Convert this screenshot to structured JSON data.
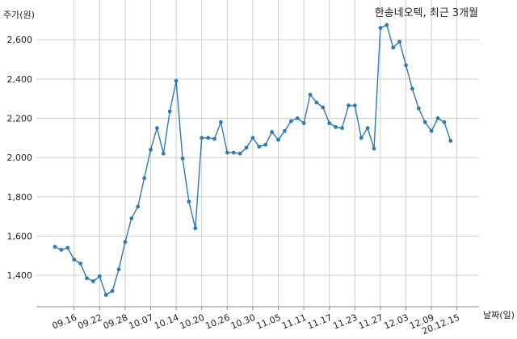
{
  "chart_data": {
    "type": "line",
    "title": "한송네오텍, 최근 3개월",
    "ylabel": "주가(원)",
    "xlabel": "날짜(일)",
    "ylim": [
      1240,
      2720
    ],
    "yticks": [
      1400,
      1600,
      1800,
      2000,
      2200,
      2400,
      2600
    ],
    "ytick_labels": [
      "1,400",
      "1,600",
      "1,800",
      "2,000",
      "2,200",
      "2,400",
      "2,600"
    ],
    "xtick_labels": [
      "09.16",
      "09.22",
      "09.28",
      "10.07",
      "10.14",
      "10.20",
      "10.26",
      "10.30",
      "11.05",
      "11.11",
      "11.17",
      "11.23",
      "11.27",
      "12.03",
      "12.09",
      "20.12.15"
    ],
    "xtick_index": [
      3,
      7,
      11,
      15,
      19,
      23,
      27,
      31,
      35,
      39,
      43,
      47,
      51,
      55,
      59,
      63
    ],
    "grid": true,
    "series": [
      {
        "color": "#2e7bb3",
        "values": [
          1545,
          1530,
          1540,
          1480,
          1460,
          1385,
          1370,
          1395,
          1300,
          1320,
          1430,
          1570,
          1690,
          1750,
          1895,
          2040,
          2150,
          2020,
          2235,
          2390,
          1995,
          1775,
          1640,
          2100,
          2100,
          2095,
          2180,
          2025,
          2025,
          2020,
          2050,
          2100,
          2055,
          2065,
          2130,
          2090,
          2135,
          2185,
          2200,
          2175,
          2320,
          2280,
          2255,
          2175,
          2155,
          2150,
          2265,
          2265,
          2100,
          2150,
          2045,
          2660,
          2675,
          2560,
          2590,
          2470,
          2350,
          2250,
          2180,
          2135,
          2200,
          2180,
          2085
        ]
      }
    ]
  }
}
